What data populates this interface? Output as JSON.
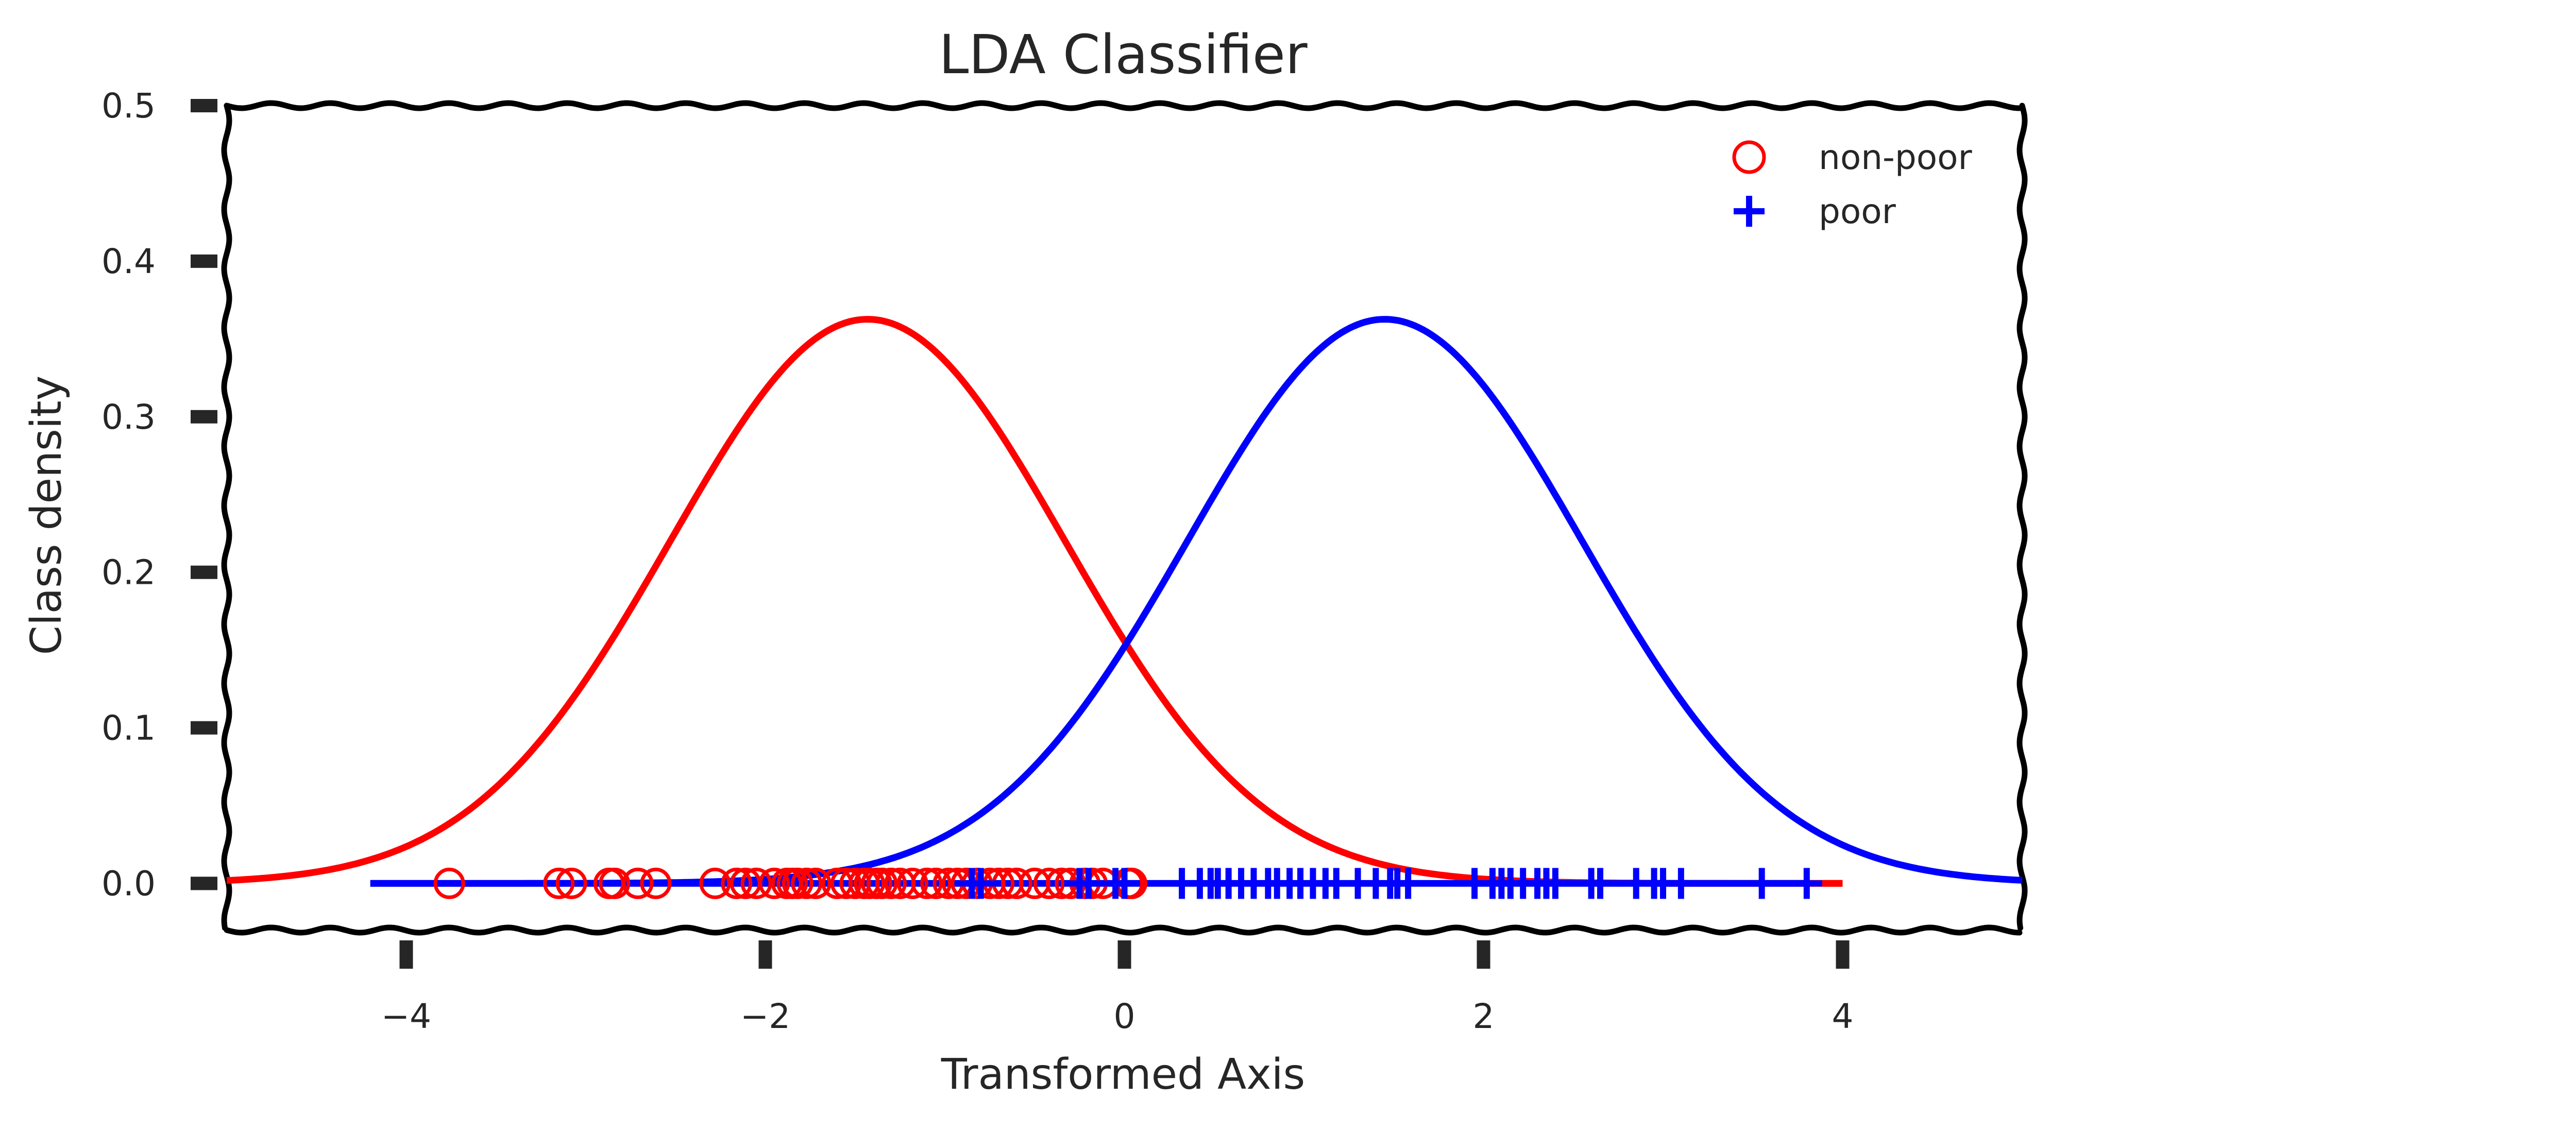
{
  "chart_data": {
    "type": "line",
    "title": "LDA Classifier",
    "xlabel": "Transformed Axis",
    "ylabel": "Class density",
    "xlim": [
      -5,
      5
    ],
    "ylim": [
      -0.03,
      0.5
    ],
    "xticks": [
      -4,
      -2,
      0,
      2,
      4
    ],
    "xtick_labels": [
      "−4",
      "−2",
      "0",
      "2",
      "4"
    ],
    "yticks": [
      0.0,
      0.1,
      0.2,
      0.3,
      0.4,
      0.5
    ],
    "ytick_labels": [
      "0.0",
      "0.1",
      "0.2",
      "0.3",
      "0.4",
      "0.5"
    ],
    "grid": false,
    "legend_position": "top-right",
    "series": [
      {
        "name": "non-poor",
        "kind": "density",
        "color": "#ff0000",
        "mean": -1.43,
        "std": 1.1,
        "x_range": [
          -5,
          4
        ],
        "marker": "open-circle",
        "points": [
          -3.76,
          -3.15,
          -3.08,
          -2.87,
          -2.84,
          -2.71,
          -2.61,
          -2.28,
          -2.16,
          -2.11,
          -2.05,
          -1.95,
          -1.88,
          -1.85,
          -1.82,
          -1.77,
          -1.72,
          -1.6,
          -1.55,
          -1.5,
          -1.45,
          -1.42,
          -1.38,
          -1.35,
          -1.3,
          -1.25,
          -1.18,
          -1.1,
          -1.05,
          -0.98,
          -0.93,
          -0.88,
          -0.82,
          -0.75,
          -0.7,
          -0.65,
          -0.6,
          -0.5,
          -0.42,
          -0.35,
          -0.3,
          -0.22,
          -0.18,
          -0.12,
          0.02,
          0.04
        ]
      },
      {
        "name": "poor",
        "kind": "density",
        "color": "#0000ff",
        "mean": 1.45,
        "std": 1.1,
        "x_range": [
          -4.2,
          5
        ],
        "marker": "plus",
        "points": [
          -0.85,
          -0.8,
          -0.25,
          -0.2,
          -0.05,
          0.0,
          0.32,
          0.42,
          0.48,
          0.52,
          0.58,
          0.65,
          0.72,
          0.8,
          0.85,
          0.92,
          0.98,
          1.05,
          1.12,
          1.18,
          1.3,
          1.4,
          1.48,
          1.52,
          1.58,
          1.95,
          2.05,
          2.1,
          2.15,
          2.22,
          2.3,
          2.35,
          2.4,
          2.6,
          2.65,
          2.85,
          2.95,
          3.0,
          3.1,
          3.55,
          3.8
        ]
      }
    ]
  }
}
